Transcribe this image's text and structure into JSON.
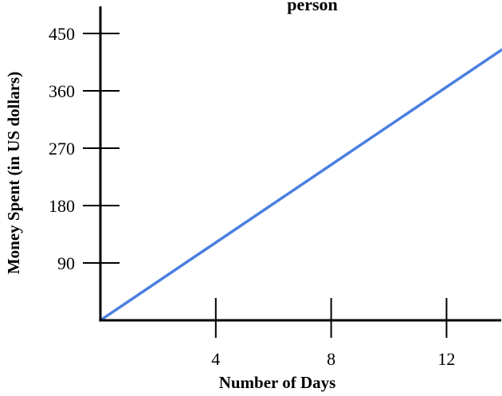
{
  "chart_data": {
    "type": "line",
    "title": "person",
    "xlabel": "Number of Days",
    "ylabel": "Money Spent (in US dollars)",
    "xlim": [
      0,
      14
    ],
    "ylim": [
      0,
      480
    ],
    "x_ticks": [
      4,
      8,
      12
    ],
    "y_ticks": [
      90,
      180,
      270,
      360,
      450
    ],
    "grid": false,
    "series": [
      {
        "color": "#4a7fe0",
        "x": [
          0,
          13.9
        ],
        "y": [
          0,
          424
        ]
      }
    ]
  }
}
